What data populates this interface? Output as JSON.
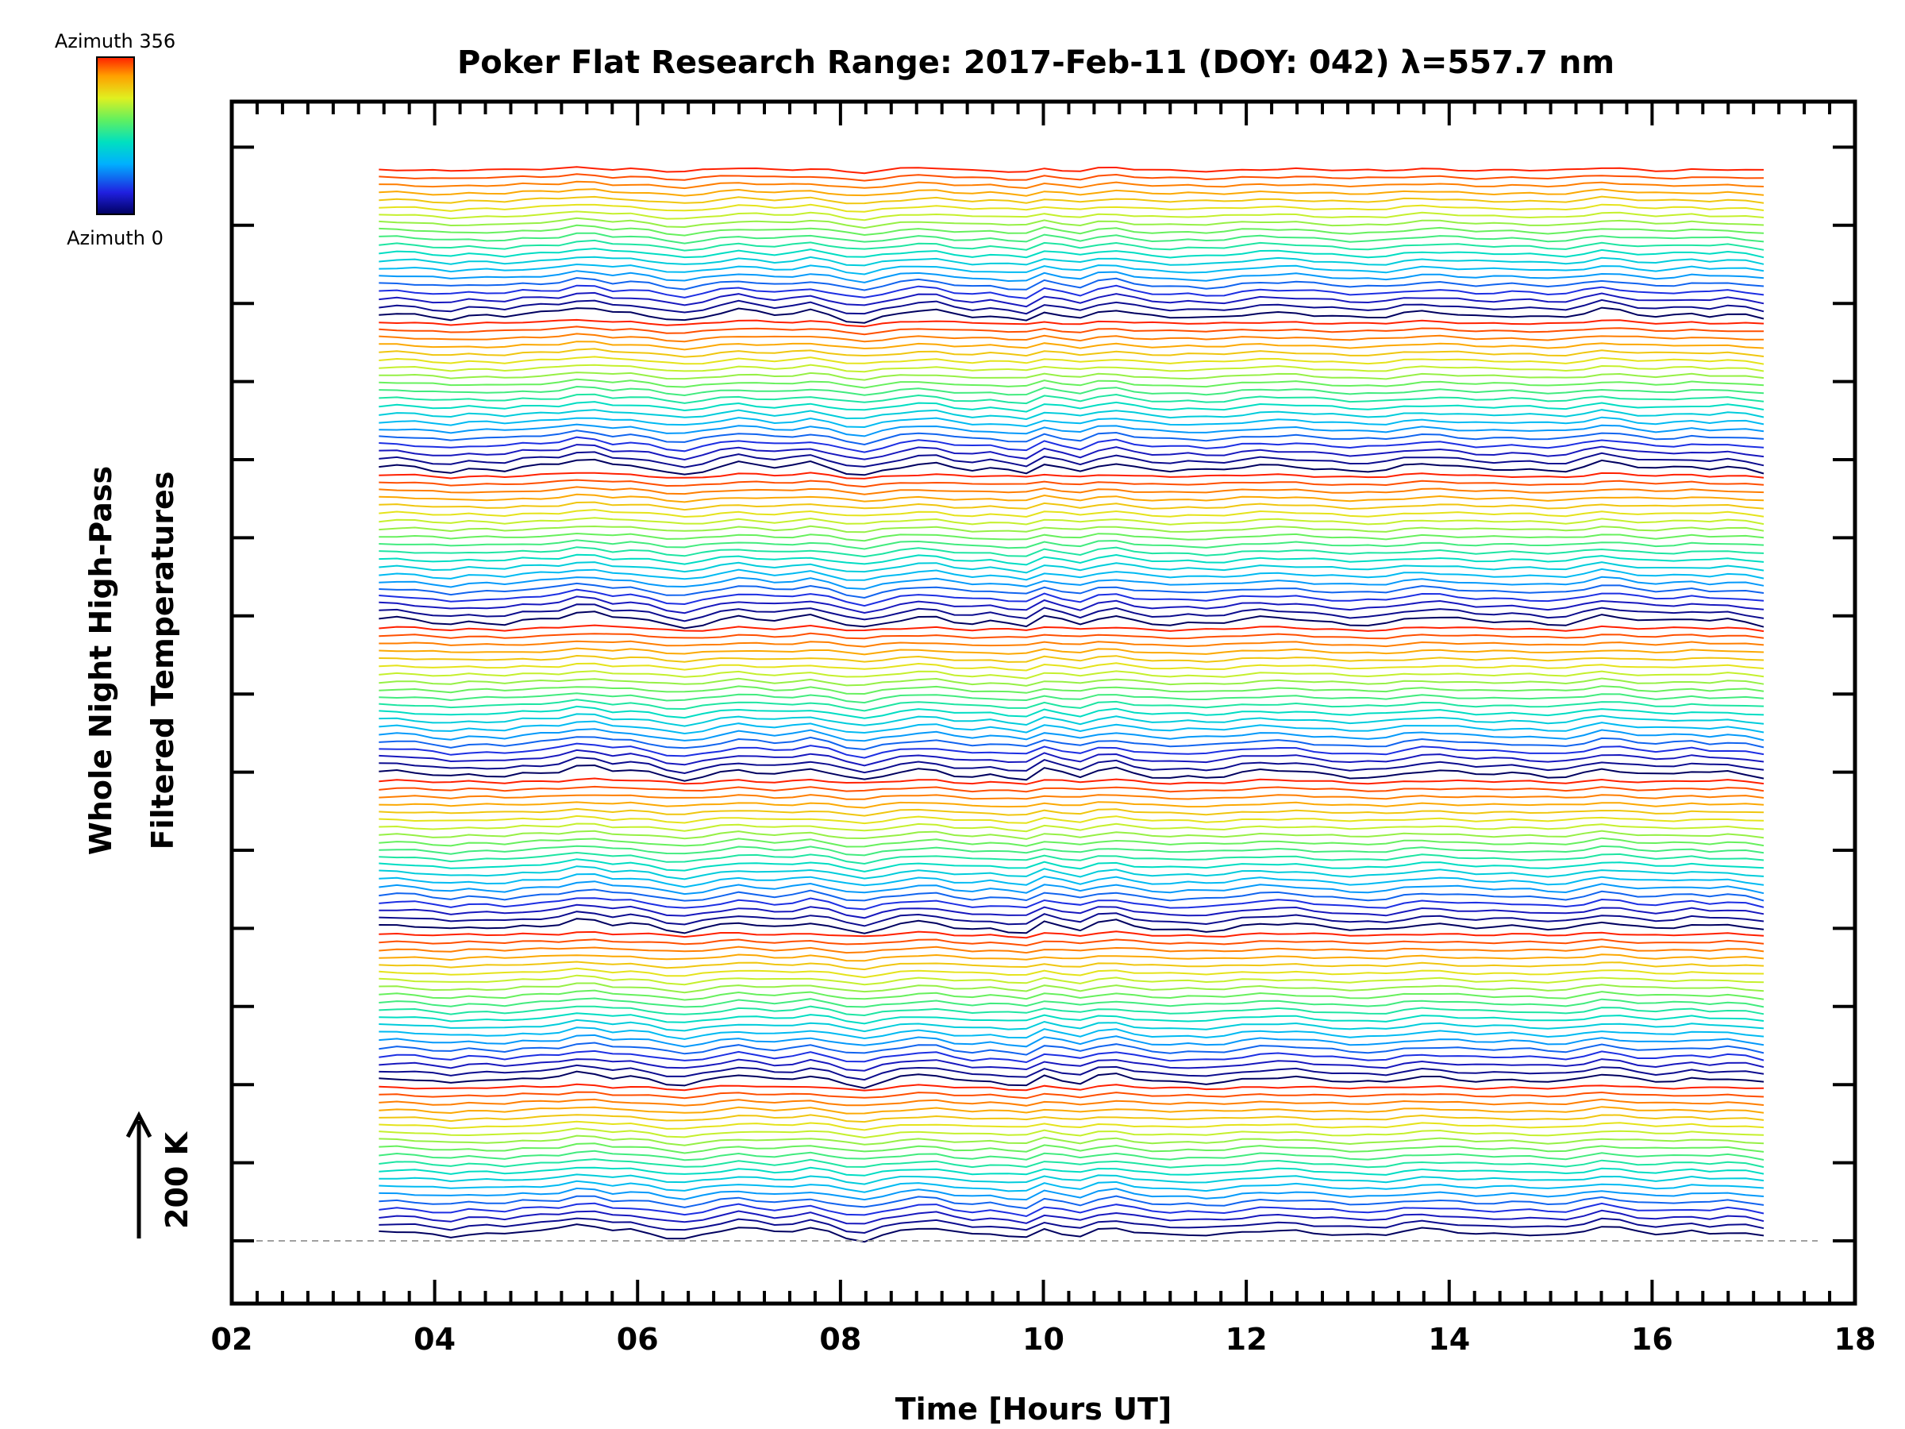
{
  "chart_data": {
    "type": "line",
    "title": "Poker Flat Research Range: 2017-Feb-11 (DOY: 042) λ=557.7 nm",
    "xlabel": "Time [Hours UT]",
    "ylabel_line1": "Whole Night High-Pass",
    "ylabel_line2": "Filtered Temperatures",
    "xlim": [
      2,
      18
    ],
    "x_tick_labels": [
      "02",
      "04",
      "06",
      "08",
      "10",
      "12",
      "14",
      "16",
      "18"
    ],
    "x_range_of_data": [
      3.45,
      17.1
    ],
    "colorbar": {
      "top_label": "Azimuth 356",
      "bottom_label": "Azimuth 0",
      "colors": [
        "#000060",
        "#2020e0",
        "#00b0ff",
        "#00e0c0",
        "#60f060",
        "#e0f020",
        "#ffa000",
        "#ff2000"
      ]
    },
    "scale_bar": {
      "label": "200 K",
      "direction": "up"
    },
    "series_groups": 7,
    "series_per_group": 20,
    "grid": false,
    "legend": "colorbar top-left",
    "baseline": "dashed grey at lowest trace"
  }
}
